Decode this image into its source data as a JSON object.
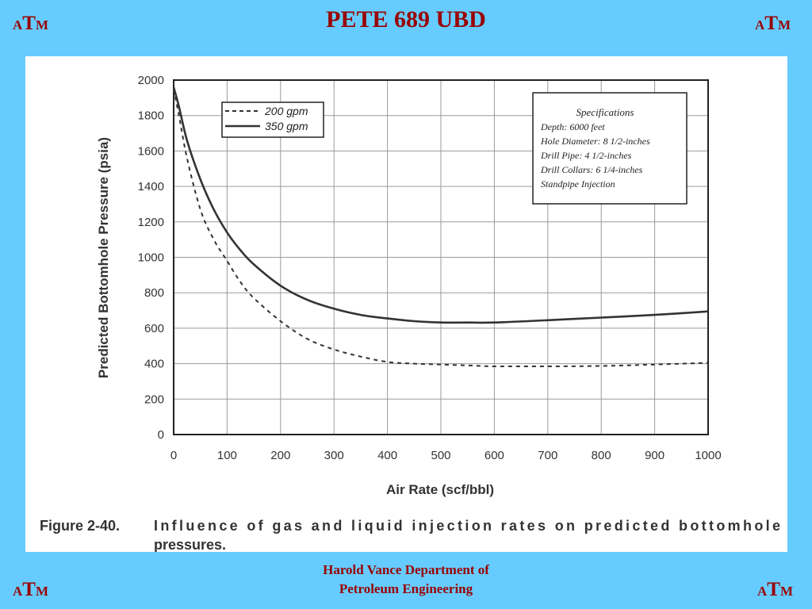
{
  "header": {
    "title": "PETE 689 UBD",
    "logo": {
      "a": "A",
      "t": "T",
      "m": "M"
    }
  },
  "footer": {
    "line1": "Harold Vance Department of",
    "line2": "Petroleum Engineering"
  },
  "colors": {
    "background": "#66ccff",
    "accent": "#990000"
  },
  "chart_data": {
    "type": "line",
    "xlabel": "Air Rate (scf/bbl)",
    "ylabel": "Predicted Bottomhole Pressure (psia)",
    "xlim": [
      0,
      1000
    ],
    "ylim": [
      0,
      2000
    ],
    "x_ticks": [
      "0",
      "100",
      "200",
      "300",
      "400",
      "500",
      "600",
      "700",
      "800",
      "900",
      "1000"
    ],
    "y_ticks": [
      "0",
      "200",
      "400",
      "600",
      "800",
      "1000",
      "1200",
      "1400",
      "1600",
      "1800",
      "2000"
    ],
    "grid": true,
    "legend_position": "top-left",
    "series": [
      {
        "name": "200 gpm",
        "style": "dashed",
        "x": [
          0,
          10,
          25,
          50,
          75,
          100,
          125,
          150,
          200,
          250,
          300,
          350,
          400,
          450,
          500,
          550,
          600,
          700,
          800,
          900,
          1000
        ],
        "y": [
          1950,
          1800,
          1560,
          1270,
          1100,
          980,
          860,
          770,
          640,
          540,
          480,
          440,
          410,
          400,
          395,
          390,
          385,
          385,
          387,
          395,
          405
        ]
      },
      {
        "name": "350 gpm",
        "style": "solid",
        "x": [
          0,
          10,
          25,
          50,
          75,
          100,
          125,
          150,
          200,
          250,
          300,
          350,
          400,
          450,
          500,
          550,
          600,
          700,
          800,
          900,
          1000
        ],
        "y": [
          1960,
          1850,
          1660,
          1440,
          1270,
          1140,
          1040,
          960,
          840,
          760,
          710,
          675,
          655,
          640,
          632,
          632,
          632,
          645,
          660,
          675,
          695
        ]
      }
    ],
    "annotation": {
      "title": "Specifications",
      "lines": [
        "Depth:  6000 feet",
        "Hole Diameter:  8 1/2-inches",
        "Drill Pipe:  4 1/2-inches",
        "Drill Collars:  6 1/4-inches",
        "Standpipe Injection"
      ]
    },
    "caption": {
      "label": "Figure 2-40.",
      "line1": "Influence of gas and liquid injection rates on predicted bottomhole",
      "line2": "pressures."
    }
  }
}
